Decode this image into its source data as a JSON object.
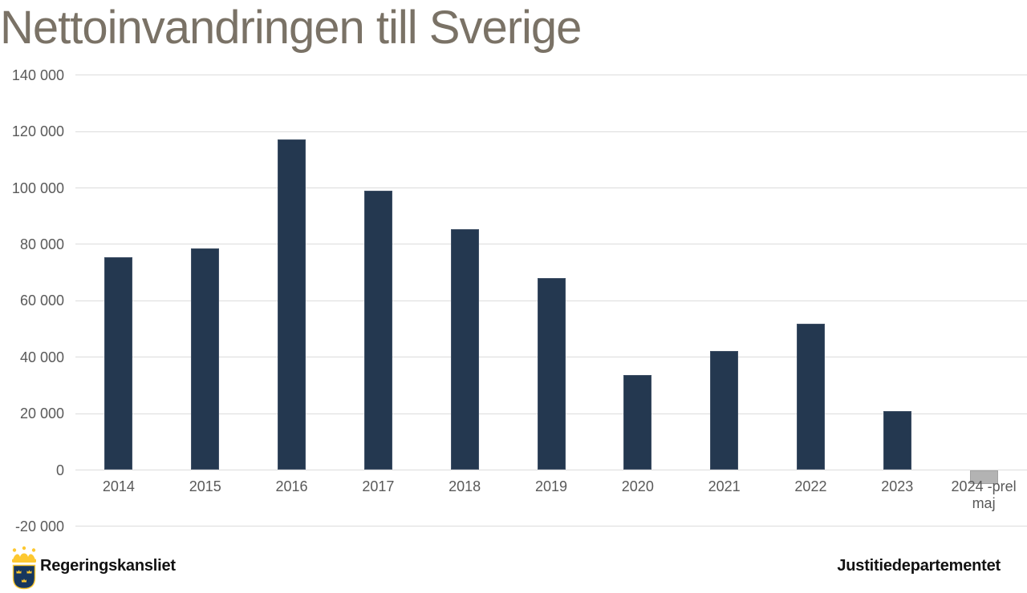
{
  "title": "Nettoinvandringen till Sverige",
  "footer": {
    "left_org": "Regeringskansliet",
    "right_org": "Justitiedepartementet",
    "logo": "swedish-government-coat-of-arms"
  },
  "colors": {
    "bar": "#243850",
    "bar_border": "#3f5066",
    "bar_preliminary": "#b3b3b3",
    "bar_preliminary_border": "#a2a2a2",
    "title_text": "#7a7266",
    "axis_text": "#595959",
    "gridline": "#dcdcdc",
    "logo_blue": "#17375e",
    "logo_gold": "#fdc830"
  },
  "chart_data": {
    "type": "bar",
    "title": "Nettoinvandringen till Sverige",
    "categories": [
      "2014",
      "2015",
      "2016",
      "2017",
      "2018",
      "2019",
      "2020",
      "2021",
      "2022",
      "2023",
      "2024 -prel\nmaj"
    ],
    "values": [
      75500,
      78500,
      117200,
      99000,
      85500,
      68000,
      33700,
      42300,
      51800,
      21000,
      -5000
    ],
    "preliminary_index": 10,
    "xlabel": "",
    "ylabel": "",
    "ylim": [
      -20000,
      140000
    ],
    "ytick_step": 20000,
    "ytick_labels_top_down": [
      "140 000",
      "120 000",
      "100 000",
      "80 000",
      "60 000",
      "40 000",
      "20 000",
      "0",
      "-20 000"
    ],
    "grid": "horizontal",
    "legend": "none"
  }
}
